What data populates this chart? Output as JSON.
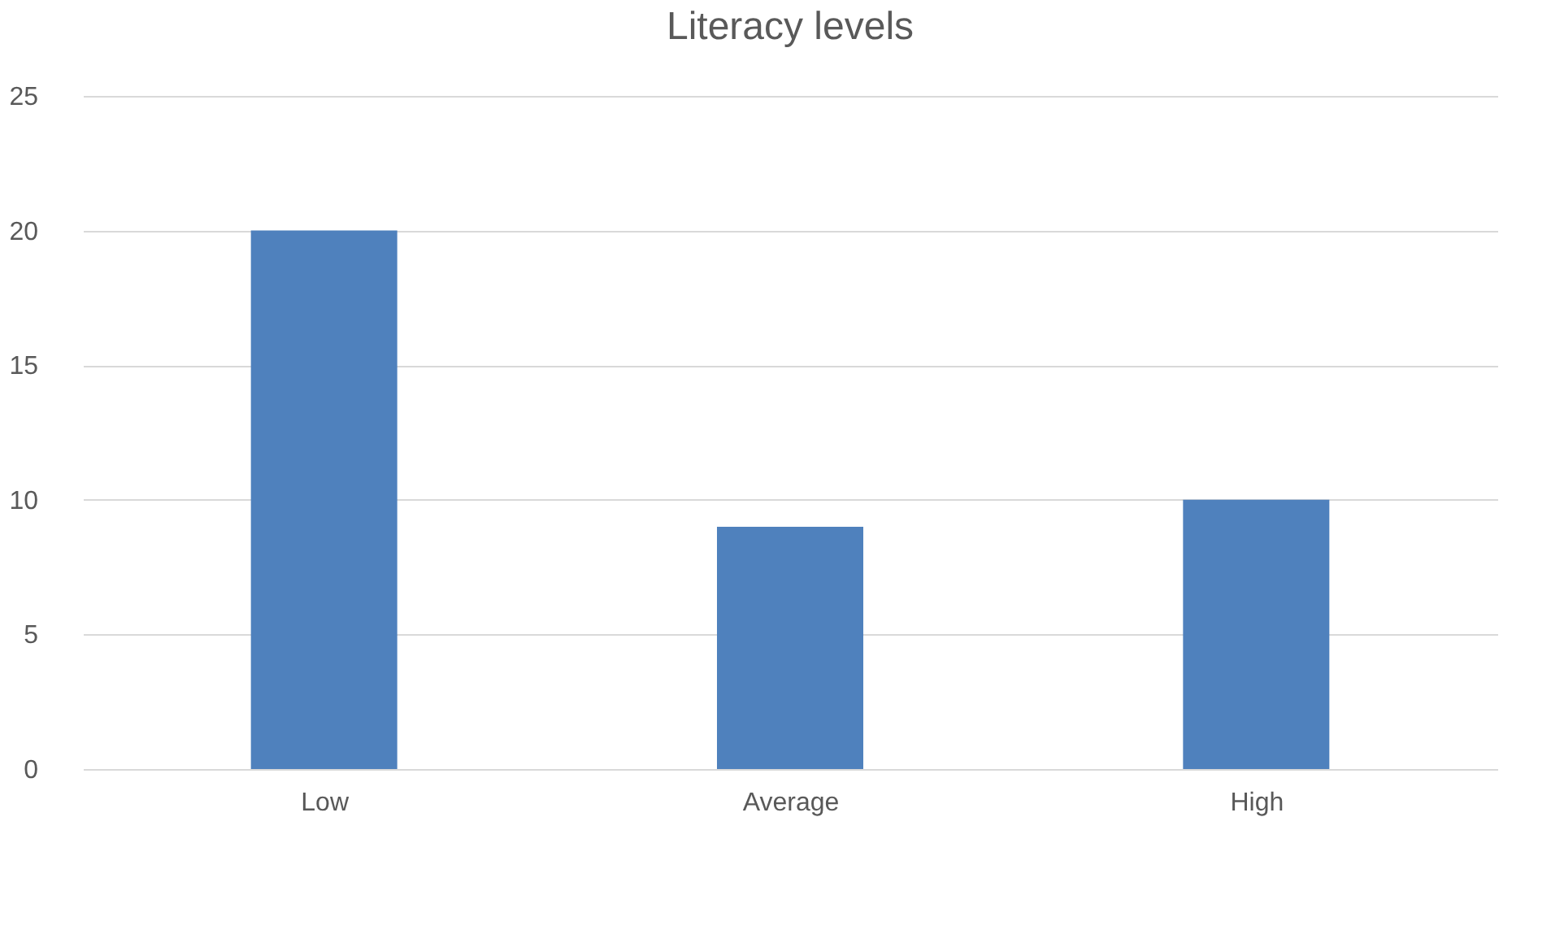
{
  "chart_data": {
    "type": "bar",
    "title": "Literacy levels",
    "categories": [
      "Low",
      "Average",
      "High"
    ],
    "values": [
      20,
      9,
      10
    ],
    "color": "#4f81bd",
    "ylim": [
      0,
      25
    ],
    "yticks": [
      0,
      5,
      10,
      15,
      20,
      25
    ],
    "grid": "y"
  }
}
